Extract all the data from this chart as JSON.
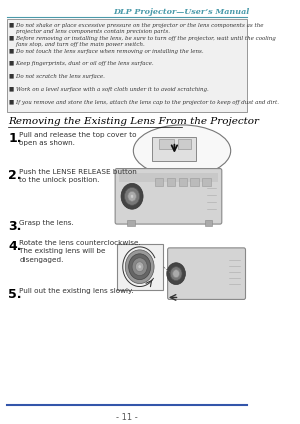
{
  "page_bg": "#ffffff",
  "header_text": "DLP Projector—User’s Manual",
  "header_color": "#4a9aaa",
  "warning_box_bg": "#f0f0f0",
  "warning_box_border": "#888888",
  "warning_bullets": [
    "Do not shake or place excessive pressure on the projector or the lens components as the\n  projector and lens components contain precision parts.",
    "Before removing or installing the lens, be sure to turn off the projector, wait until the cooling\n  fans stop, and turn off the main power switch.",
    "Do not touch the lens surface when removing or installing the lens.",
    "Keep fingerprints, dust or oil off the lens surface.",
    "Do not scratch the lens surface.",
    "Work on a level surface with a soft cloth under it to avoid scratching.",
    "If you remove and store the lens, attach the lens cap to the projector to keep off dust and dirt."
  ],
  "section_title": "Removing the Existing Lens From the Projector",
  "section_title_color": "#000000",
  "steps": [
    {
      "num": "1.",
      "text": "Pull and release the top cover to\nopen as shown."
    },
    {
      "num": "2.",
      "text": "Push the LENSE RELEASE button\nto the unlock position."
    },
    {
      "num": "3.",
      "text": "Grasp the lens."
    },
    {
      "num": "4.",
      "text": "Rotate the lens counterclockwise.\nThe existing lens will be\ndisengaged."
    },
    {
      "num": "5.",
      "text": "Pull out the existing lens slowly."
    }
  ],
  "footer_line_color": "#3355aa",
  "footer_text": "- 11 -",
  "footer_text_color": "#555555",
  "text_color": "#333333",
  "step_num_color": "#000000",
  "warning_text_color": "#333333"
}
